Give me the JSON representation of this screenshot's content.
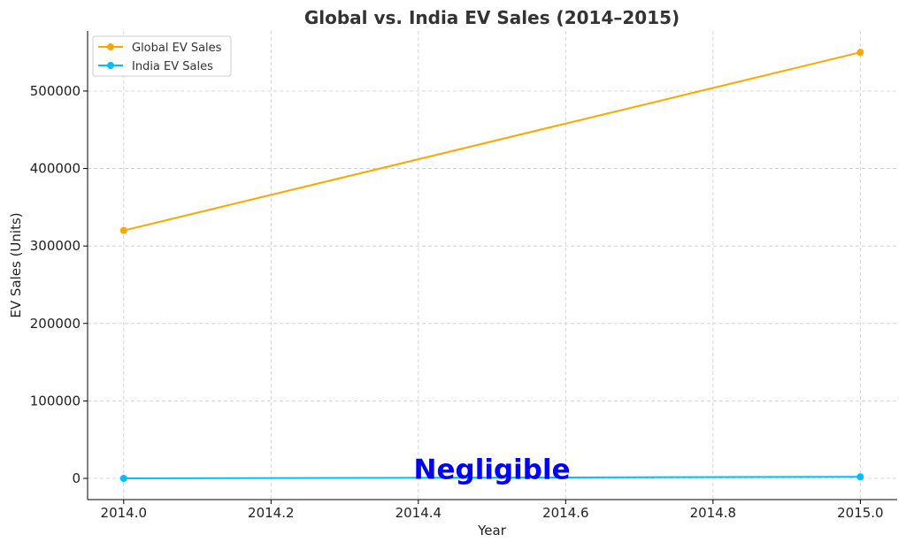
{
  "chart_data": {
    "type": "line",
    "title": "Global vs. India EV Sales (2014–2015)",
    "xlabel": "Year",
    "ylabel": "EV Sales (Units)",
    "xlim": [
      2013.951,
      2015.05
    ],
    "ylim": [
      -27400,
      577600
    ],
    "xticks": [
      2014.0,
      2014.2,
      2014.4,
      2014.6,
      2014.8,
      2015.0
    ],
    "xtick_labels": [
      "2014.0",
      "2014.2",
      "2014.4",
      "2014.6",
      "2014.8",
      "2015.0"
    ],
    "yticks": [
      0,
      100000,
      200000,
      300000,
      400000,
      500000
    ],
    "ytick_labels": [
      "0",
      "100000",
      "200000",
      "300000",
      "400000",
      "500000"
    ],
    "grid": true,
    "legend_position": "top-left",
    "x": [
      2014,
      2015
    ],
    "series": [
      {
        "name": "Global EV Sales",
        "values": [
          320000,
          550000
        ],
        "color": "#FFA500"
      },
      {
        "name": "India EV Sales",
        "values": [
          0,
          2000
        ],
        "color": "#00BFFF"
      }
    ],
    "annotations": [
      {
        "text": "Negligible",
        "x": 2014.5,
        "y": 12000,
        "color": "#0000FF"
      }
    ]
  }
}
